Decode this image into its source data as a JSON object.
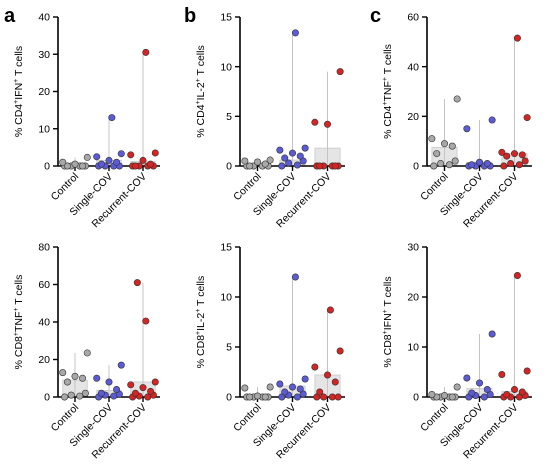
{
  "panel_letters": [
    "a",
    "b",
    "c"
  ],
  "colors": {
    "Control": "#a8a8a8",
    "Single-COV": "#5b5bd6",
    "Recurrent-COV": "#d42424",
    "bar_fill": "#e5e5e5",
    "bar_stroke": "#c8c8c8",
    "range_line": "#c4c4c4",
    "axis": "#000000"
  },
  "chart_data": [
    {
      "type": "scatter",
      "panel": "a",
      "ylabel": {
        "pre": "% CD4",
        "sup1": "+",
        "mid": "IFN",
        "sup2": "+",
        "post": " T cells"
      },
      "categories": [
        "Control",
        "Single-COV",
        "Recurrent-COV"
      ],
      "ylim": [
        0,
        40
      ],
      "yticks": [
        0,
        10,
        20,
        30,
        40
      ],
      "bar_means": [
        0.3,
        1.5,
        1.2
      ],
      "series": [
        {
          "name": "Control",
          "values": [
            0,
            0,
            0,
            0,
            0,
            0,
            0.5,
            1,
            2.3
          ]
        },
        {
          "name": "Single-COV",
          "values": [
            0,
            0,
            0,
            0,
            0.5,
            1,
            1.5,
            2.5,
            3.3,
            13
          ]
        },
        {
          "name": "Recurrent-COV",
          "values": [
            0,
            0,
            0,
            0,
            0,
            0.5,
            1.5,
            3,
            3.5,
            30.5
          ]
        }
      ]
    },
    {
      "type": "scatter",
      "panel": "b",
      "ylabel": {
        "pre": "% CD4",
        "sup1": "+",
        "mid": "IL-2",
        "sup2": "+",
        "post": " T cells"
      },
      "categories": [
        "Control",
        "Single-COV",
        "Recurrent-COV"
      ],
      "ylim": [
        0,
        15
      ],
      "yticks": [
        0,
        5,
        10,
        15
      ],
      "bar_means": [
        0.1,
        0.6,
        1.8
      ],
      "series": [
        {
          "name": "Control",
          "values": [
            0,
            0,
            0,
            0,
            0,
            0.2,
            0.4,
            0.5,
            0.6
          ]
        },
        {
          "name": "Single-COV",
          "values": [
            0,
            0.1,
            0.3,
            0.5,
            0.8,
            1,
            1.3,
            1.6,
            1.8,
            13.4
          ]
        },
        {
          "name": "Recurrent-COV",
          "values": [
            0,
            0,
            0,
            0,
            0,
            0,
            4.2,
            4.4,
            9.5
          ]
        }
      ]
    },
    {
      "type": "scatter",
      "panel": "c",
      "ylabel": {
        "pre": "% CD4",
        "sup1": "+",
        "mid": "TNF",
        "sup2": "+",
        "post": " T cells"
      },
      "categories": [
        "Control",
        "Single-COV",
        "Recurrent-COV"
      ],
      "ylim": [
        0,
        60
      ],
      "yticks": [
        0,
        20,
        40,
        60
      ],
      "bar_means": [
        7.5,
        1.5,
        5
      ],
      "series": [
        {
          "name": "Control",
          "values": [
            0,
            0.5,
            1,
            2,
            5,
            8,
            9,
            11,
            27
          ]
        },
        {
          "name": "Single-COV",
          "values": [
            0,
            0,
            0,
            0,
            0.5,
            1,
            1.5,
            15,
            18.5
          ]
        },
        {
          "name": "Recurrent-COV",
          "values": [
            0,
            0.5,
            1,
            2,
            4,
            4.5,
            5,
            5.5,
            19.5,
            51.5
          ]
        }
      ]
    },
    {
      "type": "scatter",
      "panel": "a",
      "ylabel": {
        "pre": "% CD8",
        "sup1": "+",
        "mid": "TNF",
        "sup2": "+",
        "post": " T cells"
      },
      "categories": [
        "Control",
        "Single-COV",
        "Recurrent-COV"
      ],
      "ylim": [
        0,
        80
      ],
      "yticks": [
        0,
        20,
        40,
        60,
        80
      ],
      "bar_means": [
        9,
        3.5,
        8
      ],
      "series": [
        {
          "name": "Control",
          "values": [
            0,
            0.5,
            1,
            2,
            8,
            10,
            11,
            13,
            23.5
          ]
        },
        {
          "name": "Single-COV",
          "values": [
            0,
            0.5,
            1,
            1.5,
            2,
            4,
            8,
            10,
            17
          ]
        },
        {
          "name": "Recurrent-COV",
          "values": [
            0,
            0,
            0.5,
            1,
            2,
            3,
            5,
            6.5,
            8,
            40.5,
            61
          ]
        }
      ]
    },
    {
      "type": "scatter",
      "panel": "b",
      "ylabel": {
        "pre": "% CD8",
        "sup1": "+",
        "mid": "IL-2",
        "sup2": "+",
        "post": " T cells"
      },
      "categories": [
        "Control",
        "Single-COV",
        "Recurrent-COV"
      ],
      "ylim": [
        0,
        15
      ],
      "yticks": [
        0,
        5,
        10,
        15
      ],
      "bar_means": [
        0.2,
        1.1,
        2.2
      ],
      "series": [
        {
          "name": "Control",
          "values": [
            0,
            0,
            0,
            0,
            0,
            0,
            0.1,
            0.9,
            1
          ]
        },
        {
          "name": "Single-COV",
          "values": [
            0,
            0,
            0.2,
            0.3,
            0.5,
            0.8,
            1,
            1.3,
            1.8,
            12
          ]
        },
        {
          "name": "Recurrent-COV",
          "values": [
            0,
            0,
            0,
            0,
            0.5,
            1.5,
            2.2,
            3,
            4.6,
            8.7
          ]
        }
      ]
    },
    {
      "type": "scatter",
      "panel": "c",
      "ylabel": {
        "pre": "% CD8",
        "sup1": "+",
        "mid": "IFN",
        "sup2": "+",
        "post": " T cells"
      },
      "categories": [
        "Control",
        "Single-COV",
        "Recurrent-COV"
      ],
      "ylim": [
        0,
        30
      ],
      "yticks": [
        0,
        10,
        20,
        30
      ],
      "bar_means": [
        0.3,
        1.7,
        1.1
      ],
      "series": [
        {
          "name": "Control",
          "values": [
            0,
            0,
            0,
            0,
            0,
            0,
            0.3,
            0.5,
            2
          ]
        },
        {
          "name": "Single-COV",
          "values": [
            0,
            0,
            0.3,
            0.5,
            0.8,
            1.5,
            2.8,
            3.8,
            12.6
          ]
        },
        {
          "name": "Recurrent-COV",
          "values": [
            0,
            0,
            0,
            0.3,
            0.5,
            1,
            1.5,
            4.5,
            5.2,
            24.3
          ]
        }
      ]
    }
  ]
}
